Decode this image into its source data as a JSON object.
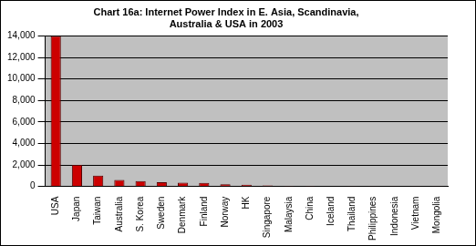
{
  "chart_data": {
    "type": "bar",
    "title": [
      "Chart 16a: Internet Power Index in E. Asia, Scandinavia,",
      "Australia & USA in 2003"
    ],
    "categories": [
      "USA",
      "Japan",
      "Taiwan",
      "Australia",
      "S. Korea",
      "Sweden",
      "Denmark",
      "Finland",
      "Norway",
      "HK",
      "Singapore",
      "Malaysia",
      "China",
      "Iceland",
      "Thailand",
      "Philippines",
      "Indonesia",
      "Vietnam",
      "Mongolia"
    ],
    "values": [
      14000,
      2000,
      1000,
      600,
      500,
      400,
      350,
      330,
      200,
      150,
      100,
      60,
      50,
      30,
      20,
      15,
      10,
      5,
      3
    ],
    "color": "#cc0000",
    "ylim": [
      0,
      14000
    ],
    "yticks": [
      0,
      {
        "value": 2000,
        "label": "2,000"
      },
      {
        "value": 4000,
        "label": "4,000"
      },
      {
        "value": 6000,
        "label": "6,000"
      },
      {
        "value": 8000,
        "label": "8,000"
      },
      {
        "value": 10000,
        "label": "10,000"
      },
      {
        "value": 12000,
        "label": "12,000"
      },
      {
        "value": 14000,
        "label": "14,000"
      }
    ],
    "grid": true
  }
}
